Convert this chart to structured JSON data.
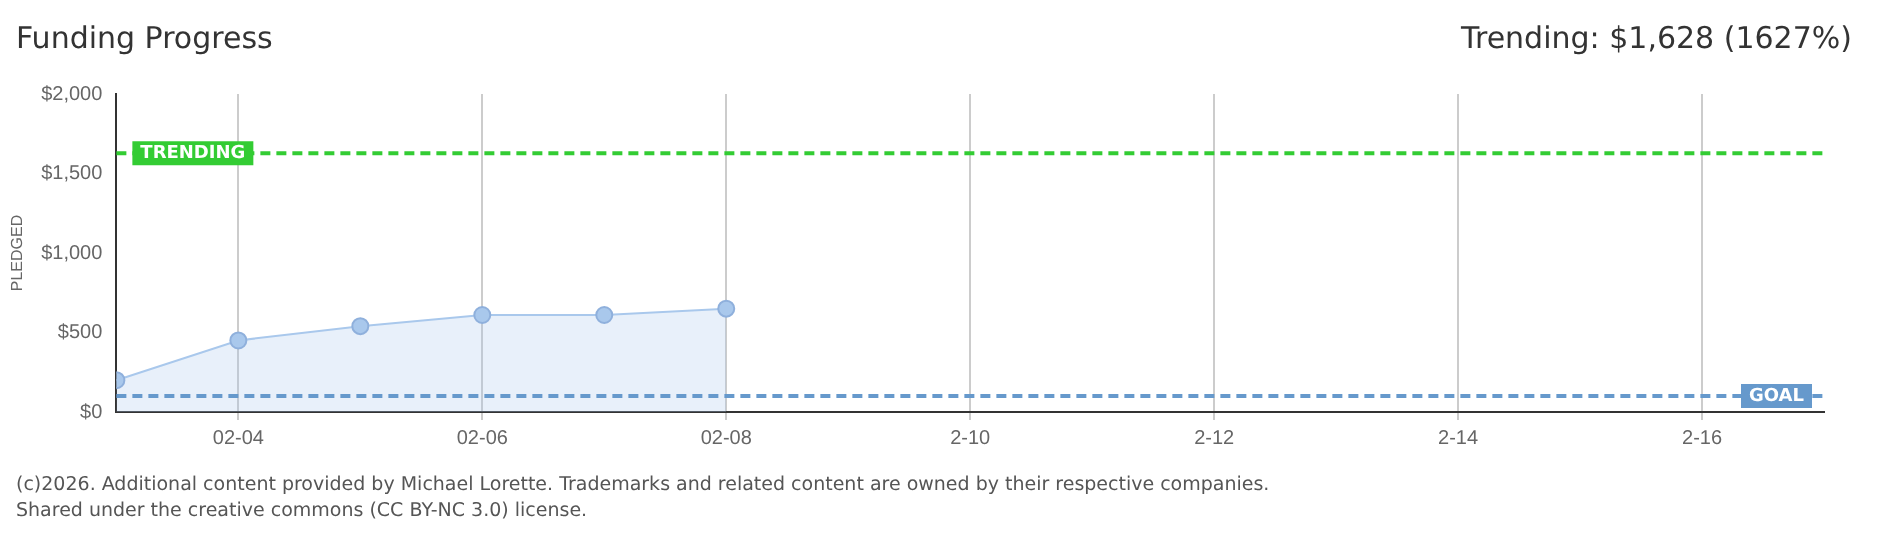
{
  "chart_data": {
    "type": "area",
    "title": "Funding Progress",
    "ylabel": "PLEDGED",
    "x": [
      "--02-03",
      "--02-04",
      "--02-05",
      "--02-06",
      "--02-07",
      "--02-08"
    ],
    "series": [
      {
        "color": "#a9c8ec",
        "values": [
          200,
          450,
          540,
          610,
          610,
          650
        ]
      }
    ],
    "xlim": [
      "--02-03",
      "--02-17"
    ],
    "xticks": [
      {
        "value": "--02-04",
        "label": "02-04"
      },
      {
        "value": "--02-06",
        "label": "02-06"
      },
      {
        "value": "--02-08",
        "label": "02-08"
      },
      {
        "value": "--02-10",
        "label": "2-10"
      },
      {
        "value": "--02-12",
        "label": "2-12"
      },
      {
        "value": "--02-14",
        "label": "2-14"
      },
      {
        "value": "--02-16",
        "label": "2-16"
      }
    ],
    "ylim": [
      0,
      2000
    ],
    "yticks": [
      {
        "value": 0,
        "label": "$0"
      },
      {
        "value": 500,
        "label": "$500"
      },
      {
        "value": 1000,
        "label": "$1,000"
      },
      {
        "value": 1500,
        "label": "$1,500"
      },
      {
        "value": 2000,
        "label": "$2,000"
      }
    ],
    "ref_lines": [
      {
        "axis": "y",
        "value": 1628,
        "label": "TRENDING",
        "color": "#33cc33",
        "line_style": "dashed"
      },
      {
        "axis": "y",
        "value": 100,
        "label": "GOAL",
        "color": "#6699cc",
        "line_style": "dashed"
      }
    ],
    "annotations": [
      "Trending: $1,628 (1627%)",
      "(c)2026. Additional content provided by Michael Lorette. Trademarks and related content are owned by their respective companies.",
      "Shared under the creative commons (CC BY-NC 3.0) license."
    ],
    "grid": "x",
    "marker": "circle",
    "line_style": "solid",
    "legend": false
  }
}
